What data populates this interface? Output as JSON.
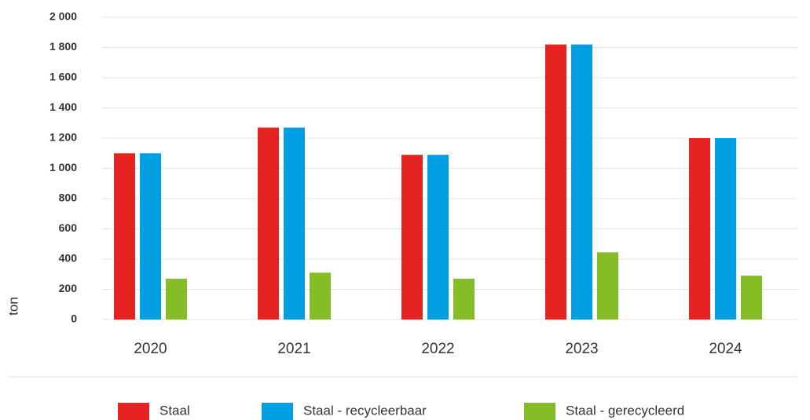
{
  "chart_data": {
    "type": "bar",
    "y_label": "ton",
    "categories": [
      "2020",
      "2021",
      "2022",
      "2023",
      "2024"
    ],
    "series": [
      {
        "name": "Staal",
        "color": "#e52421",
        "values": [
          1100,
          1270,
          1090,
          1820,
          1200
        ]
      },
      {
        "name": "Staal - recycleerbaar",
        "color": "#009fe3",
        "values": [
          1100,
          1270,
          1090,
          1820,
          1200
        ]
      },
      {
        "name": "Staal - gerecycleerd",
        "color": "#84bd25",
        "values": [
          270,
          310,
          270,
          445,
          290
        ]
      }
    ],
    "ylim": [
      0,
      2000
    ],
    "yticks": [
      0,
      200,
      400,
      600,
      800,
      {
        "value": 1000,
        "label": "1 000"
      },
      {
        "value": 1200,
        "label": "1 200"
      },
      {
        "value": 1400,
        "label": "1 400"
      },
      {
        "value": 1600,
        "label": "1 600"
      },
      {
        "value": 1800,
        "label": "1 800"
      },
      {
        "value": 2000,
        "label": "2 000"
      }
    ],
    "grid": true,
    "legend": "bottom"
  }
}
